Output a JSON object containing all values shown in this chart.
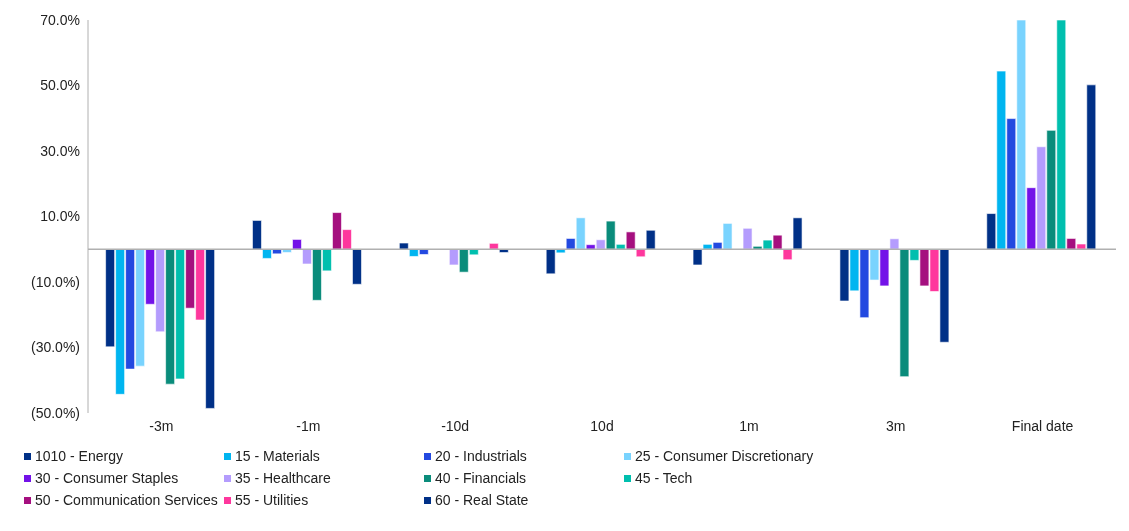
{
  "chart_data": {
    "type": "bar",
    "categories": [
      "-3m",
      "-1m",
      "-10d",
      "10d",
      "1m",
      "3m",
      "Final date"
    ],
    "series": [
      {
        "name": "1010 - Energy",
        "color": "#003087",
        "values": [
          -29.8,
          8.8,
          1.9,
          -7.5,
          -4.8,
          -15.8,
          10.9
        ]
      },
      {
        "name": "15 - Materials",
        "color": "#00b5f0",
        "values": [
          -44.3,
          -2.8,
          -2.2,
          -1.1,
          1.5,
          -12.7,
          54.4
        ]
      },
      {
        "name": "20 - Industrials",
        "color": "#2349e0",
        "values": [
          -36.6,
          -1.4,
          -1.6,
          3.3,
          2.1,
          -20.9,
          39.9
        ]
      },
      {
        "name": "25 - Consumer Discretionary",
        "color": "#79d3fe",
        "values": [
          -35.7,
          -1.0,
          null,
          9.6,
          7.9,
          -9.4,
          70
        ]
      },
      {
        "name": "30 - Consumer Staples",
        "color": "#7312e8",
        "values": [
          -16.8,
          3.0,
          0,
          1.4,
          0,
          -11.2,
          18.8
        ]
      },
      {
        "name": "35 - Healthcare",
        "color": "#b49cfd",
        "values": [
          -25.2,
          -4.5,
          -4.8,
          2.9,
          6.4,
          3.2,
          31.3
        ]
      },
      {
        "name": "40 - Financials",
        "color": "#0a8c7b",
        "values": [
          -41.2,
          -15.6,
          -7.0,
          8.6,
          0.9,
          -38.9,
          36.3
        ]
      },
      {
        "name": "45 - Tech",
        "color": "#00bfae",
        "values": [
          -39.6,
          -6.6,
          -1.7,
          1.5,
          2.8,
          -3.4,
          70
        ]
      },
      {
        "name": "50 - Communication Services",
        "color": "#a50f7f",
        "values": [
          -18.0,
          11.2,
          0,
          5.3,
          4.3,
          -11.2,
          3.3
        ]
      },
      {
        "name": "55 - Utilities",
        "color": "#fe379d",
        "values": [
          -21.6,
          6.0,
          1.8,
          -2.3,
          -3.2,
          -12.9,
          1.6
        ]
      },
      {
        "name": "60 - Real State",
        "color": "#003087",
        "values": [
          -48.6,
          -10.7,
          -1.0,
          5.8,
          9.6,
          -28.4,
          50.2
        ]
      }
    ],
    "ylim": [
      -50,
      70
    ],
    "yticks": [
      {
        "value": 70,
        "label": "70.0%"
      },
      {
        "value": 50,
        "label": "50.0%"
      },
      {
        "value": 30,
        "label": "30.0%"
      },
      {
        "value": 10,
        "label": "10.0%"
      },
      {
        "value": -10,
        "label": "(10.0%)"
      },
      {
        "value": -30,
        "label": "(30.0%)"
      },
      {
        "value": -50,
        "label": "(50.0%)"
      }
    ],
    "ref_lines": [
      {
        "axis": "y",
        "value": 0,
        "color": "#b0b0b0"
      }
    ],
    "grid": false,
    "legend": "bottom"
  }
}
